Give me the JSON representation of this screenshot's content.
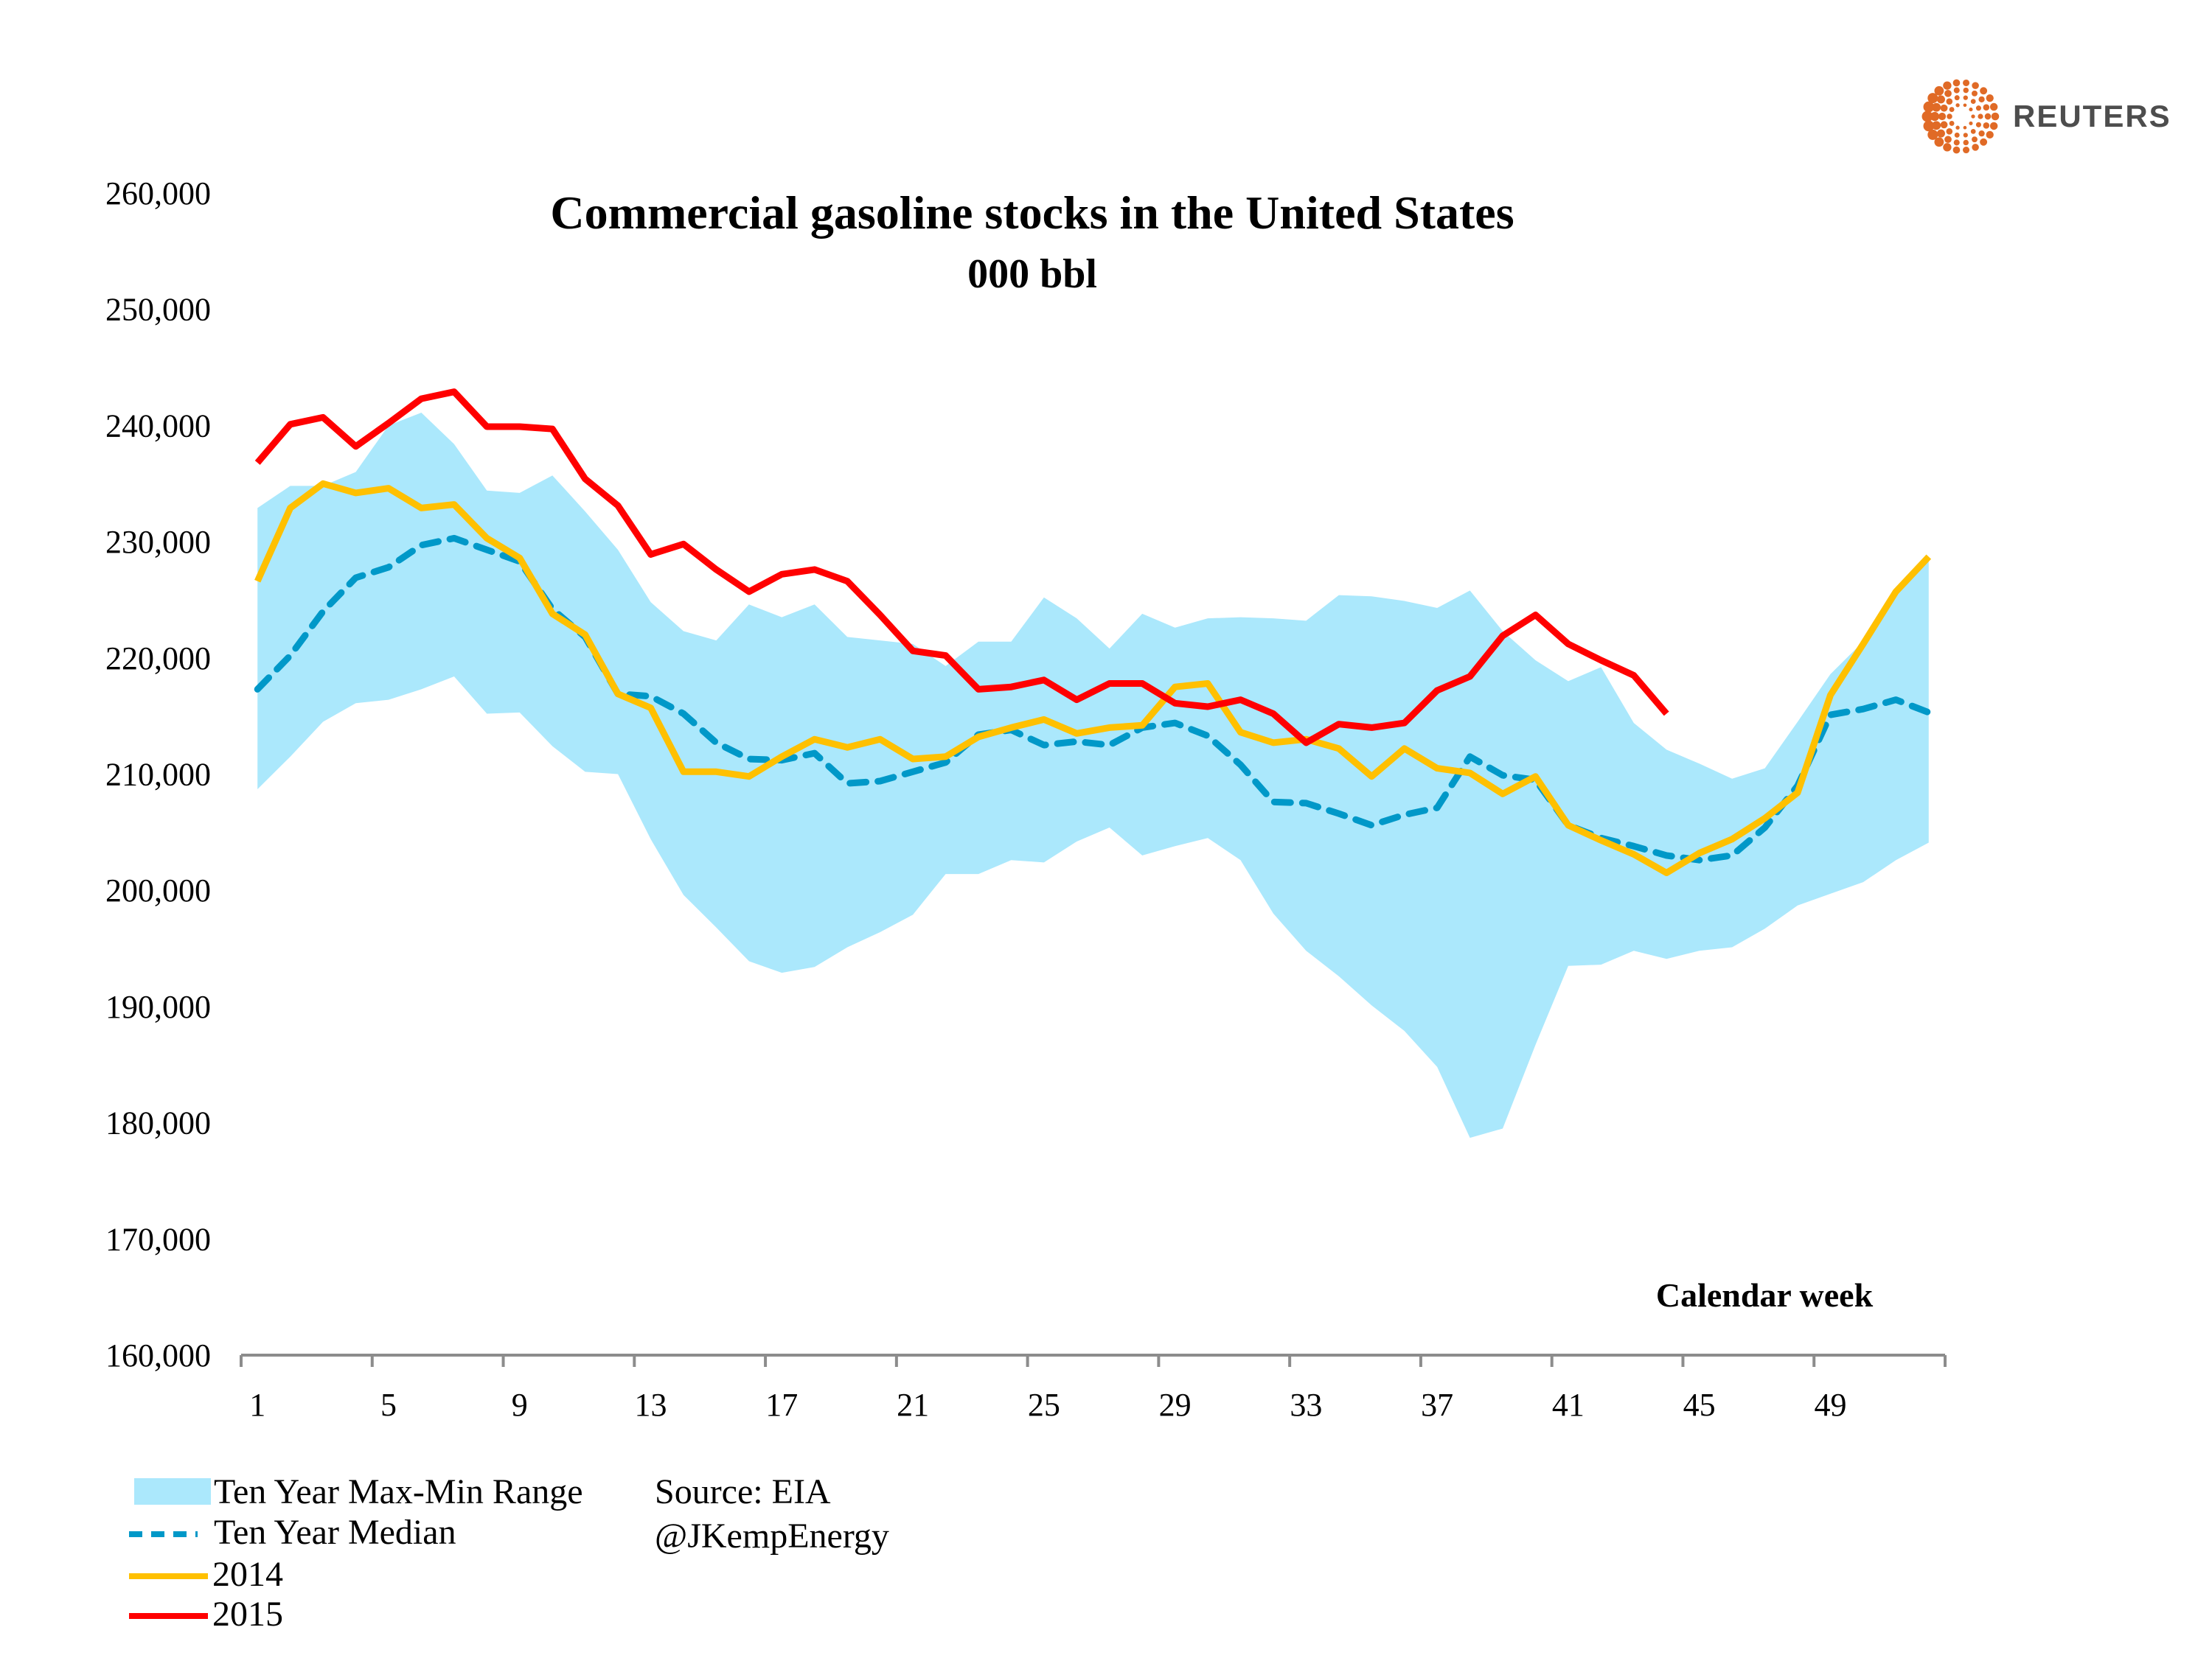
{
  "brand": {
    "name": "REUTERS",
    "logo_icon": "reuters-dot-circle-icon",
    "logo_color": "#e06a26"
  },
  "chart_data": {
    "type": "area",
    "title": "Commercial gasoline stocks in the United States",
    "subtitle": "000 bbl",
    "xlabel": "Calendar week",
    "ylabel": "",
    "x": [
      1,
      2,
      3,
      4,
      5,
      6,
      7,
      8,
      9,
      10,
      11,
      12,
      13,
      14,
      15,
      16,
      17,
      18,
      19,
      20,
      21,
      22,
      23,
      24,
      25,
      26,
      27,
      28,
      29,
      30,
      31,
      32,
      33,
      34,
      35,
      36,
      37,
      38,
      39,
      40,
      41,
      42,
      43,
      44,
      45,
      46,
      47,
      48,
      49,
      50,
      51,
      52
    ],
    "xticks": [
      "1",
      "5",
      "9",
      "13",
      "17",
      "21",
      "25",
      "29",
      "33",
      "37",
      "41",
      "45",
      "49"
    ],
    "yticks": [
      "160,000",
      "170,000",
      "180,000",
      "190,000",
      "200,000",
      "210,000",
      "220,000",
      "230,000",
      "240,000",
      "250,000",
      "260,000"
    ],
    "ylim": [
      160000,
      260000
    ],
    "grid": false,
    "legend_position": "bottom-left",
    "series": [
      {
        "name": "Ten Year Max-Min Range",
        "kind": "band",
        "color": "#abe8fc",
        "max": [
          232900,
          234800,
          234800,
          236000,
          240000,
          241100,
          238400,
          234400,
          234200,
          235700,
          232600,
          229300,
          224800,
          222300,
          221500,
          224600,
          223500,
          224600,
          221800,
          221500,
          221200,
          219300,
          221400,
          221400,
          225200,
          223400,
          220800,
          223800,
          222600,
          223400,
          223500,
          223400,
          223200,
          225400,
          225300,
          224900,
          224300,
          225800,
          222300,
          219800,
          218000,
          219200,
          214400,
          212100,
          210900,
          209600,
          210500,
          214500,
          218600,
          221400,
          225400,
          228700
        ],
        "min": [
          208700,
          211500,
          214500,
          216100,
          216400,
          217300,
          218400,
          215200,
          215300,
          212400,
          210200,
          210000,
          204400,
          199600,
          196800,
          193900,
          192900,
          193400,
          195100,
          196400,
          197900,
          201400,
          201400,
          202600,
          202400,
          204200,
          205400,
          203000,
          203800,
          204500,
          202600,
          198000,
          194800,
          192600,
          190100,
          187900,
          184800,
          178700,
          179500,
          186700,
          193500,
          193600,
          194800,
          194100,
          194800,
          195100,
          196700,
          198700,
          199700,
          200700,
          202600,
          204100
        ]
      },
      {
        "name": "Ten Year Median",
        "kind": "dashed-line",
        "color": "#0098c8",
        "values": [
          217300,
          220200,
          224000,
          226900,
          227800,
          229700,
          230300,
          229300,
          228300,
          224200,
          221800,
          216900,
          216700,
          215200,
          212700,
          211300,
          211200,
          211800,
          209200,
          209400,
          210200,
          211000,
          213400,
          213800,
          212500,
          212800,
          212500,
          214000,
          214400,
          213300,
          210800,
          207600,
          207500,
          206600,
          205600,
          206500,
          207100,
          211500,
          209900,
          209500,
          205600,
          204500,
          203800,
          203000,
          202600,
          203000,
          205400,
          209000,
          215100,
          215600,
          216400,
          215300
        ]
      },
      {
        "name": "2014",
        "kind": "line",
        "color": "#ffc000",
        "values": [
          226600,
          232900,
          235000,
          234200,
          234600,
          232900,
          233200,
          230300,
          228600,
          223800,
          222000,
          216900,
          215700,
          210200,
          210200,
          209800,
          211500,
          213000,
          212300,
          213000,
          211300,
          211500,
          213200,
          214000,
          214700,
          213500,
          214000,
          214200,
          217500,
          217800,
          213600,
          212700,
          213000,
          212200,
          209800,
          212200,
          210500,
          210100,
          208300,
          209800,
          205600,
          204300,
          203100,
          201500,
          203200,
          204400,
          206200,
          208400,
          216800,
          221200,
          225700,
          228700
        ]
      },
      {
        "name": "2015",
        "kind": "line",
        "color": "#ff0000",
        "values": [
          236800,
          240100,
          240700,
          238200,
          240200,
          242300,
          242900,
          239900,
          239900,
          239700,
          235400,
          233100,
          228900,
          229800,
          227600,
          225700,
          227200,
          227600,
          226600,
          223700,
          220600,
          220200,
          217300,
          217500,
          218100,
          216400,
          217800,
          217800,
          216100,
          215800,
          216400,
          215200,
          212700,
          214300,
          214000,
          214400,
          217200,
          218400,
          221900,
          223700,
          221200,
          219800,
          218500,
          215200
        ]
      }
    ],
    "annotations": [
      "Source: EIA",
      "@JKempEnergy"
    ]
  },
  "legend": {
    "items": [
      {
        "label": "Ten Year Max-Min Range",
        "swatch": "band"
      },
      {
        "label": "Ten Year Median",
        "swatch": "dashed"
      },
      {
        "label": "2014",
        "swatch": "line-2014"
      },
      {
        "label": "2015",
        "swatch": "line-2015"
      }
    ]
  },
  "source": {
    "line1": "Source: EIA",
    "line2": "@JKempEnergy"
  }
}
